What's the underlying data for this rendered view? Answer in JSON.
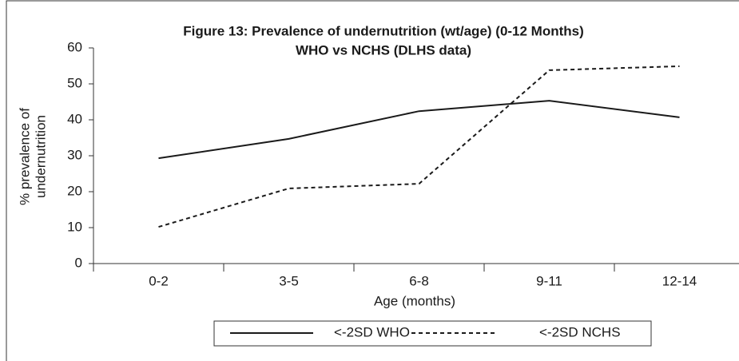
{
  "chart_data": {
    "type": "line",
    "title": "Figure 13: Prevalence of undernutrition (wt/age) (0-12 Months)",
    "subtitle": "WHO vs NCHS (DLHS data)",
    "y_label": [
      "% prevalence of",
      "undernutrition"
    ],
    "x_label": "Age (months)",
    "categories": [
      "0-2",
      "3-5",
      "6-8",
      "9-11",
      "12-14"
    ],
    "series": [
      {
        "name": "<-2SD WHO",
        "color": "#1a1a1a",
        "dashed": false,
        "values": [
          29.3,
          34.7,
          42.4,
          45.3,
          40.7
        ]
      },
      {
        "name": "<-2SD NCHS",
        "color": "#1a1a1a",
        "dashed": true,
        "values": [
          10.2,
          20.9,
          22.2,
          53.8,
          54.9
        ]
      }
    ],
    "ylim": [
      0,
      60
    ],
    "yticks": [
      0,
      10,
      20,
      30,
      40,
      50,
      60
    ],
    "grid": false
  }
}
